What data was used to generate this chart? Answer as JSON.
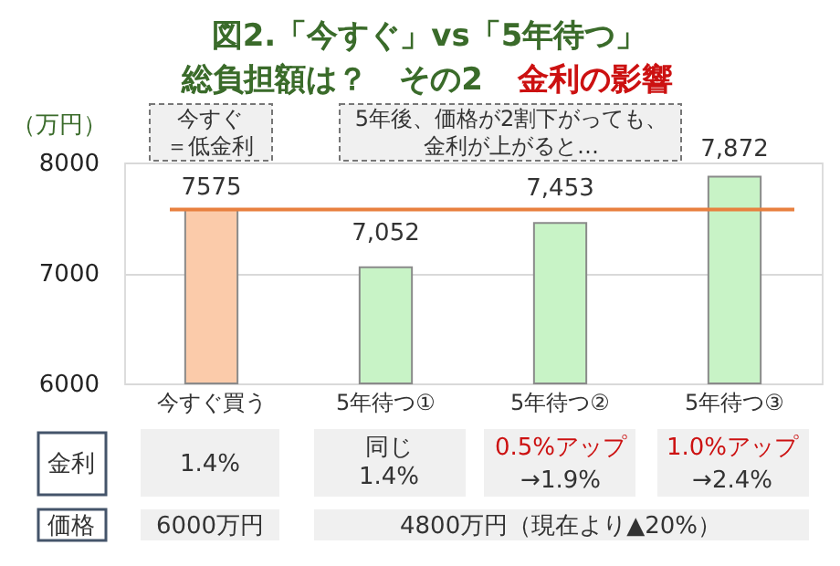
{
  "chart_data": {
    "type": "bar",
    "title": "図2.「今すぐ」vs「5年待つ」",
    "subtitle": "総負担額は？　その2",
    "ylabel": "（万円）",
    "categories": [
      "今すぐ買う",
      "5年待つ①",
      "5年待つ②",
      "5年待つ③"
    ],
    "values": [
      7575,
      7052,
      7453,
      7872
    ],
    "colors": [
      "#fbcbaa",
      "#c8f3c6",
      "#c8f3c6",
      "#c8f3c6"
    ],
    "value_labels": [
      "7575",
      "7,052",
      "7,453",
      "7,872"
    ],
    "ylim": [
      6000,
      8000
    ],
    "yticks": [
      6000,
      7000,
      8000
    ],
    "grid": "y",
    "ref_lines": [
      {
        "axis": "y",
        "value": 7575,
        "color": "#e8803f"
      }
    ],
    "annotations": [
      "金利の影響",
      "今すぐ＝低金利",
      "5年後、価格が2割下がっても、金利が上がると…",
      "金利",
      "1.4%",
      "同じ1.4%",
      "0.5%アップ",
      "→1.9%",
      "1.0%アップ",
      "→2.4%",
      "価格",
      "6000万円",
      "4800万円（現在より▲20%）"
    ]
  }
}
